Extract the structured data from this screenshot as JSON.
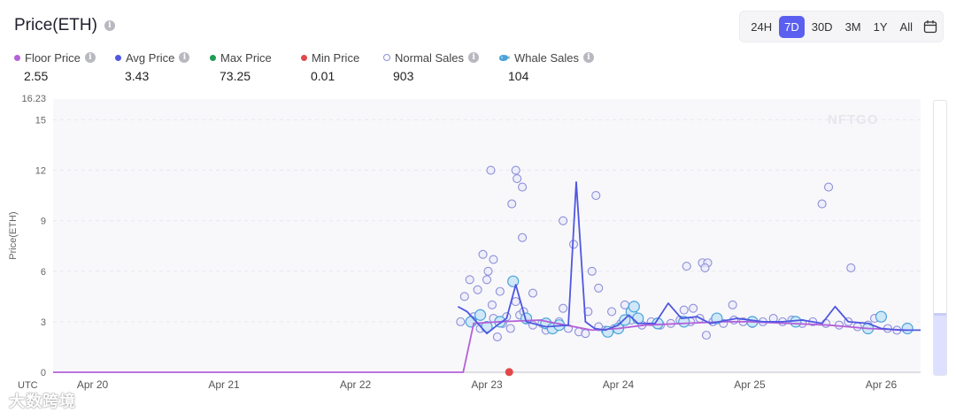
{
  "header": {
    "title": "Price(ETH)"
  },
  "ranges": {
    "items": [
      "24H",
      "7D",
      "30D",
      "3M",
      "1Y",
      "All"
    ],
    "active": "7D"
  },
  "legend": [
    {
      "label": "Floor Price",
      "value": "2.55",
      "color": "#b460d8",
      "kind": "dot",
      "info": true
    },
    {
      "label": "Avg Price",
      "value": "3.43",
      "color": "#4f57e0",
      "kind": "dot",
      "info": true
    },
    {
      "label": "Max Price",
      "value": "73.25",
      "color": "#1e9b54",
      "kind": "dot",
      "info": false
    },
    {
      "label": "Min Price",
      "value": "0.01",
      "color": "#e0484a",
      "kind": "dot",
      "info": false
    },
    {
      "label": "Normal Sales",
      "value": "903",
      "color": "#8c8fd8",
      "kind": "ring",
      "info": true
    },
    {
      "label": "Whale Sales",
      "value": "104",
      "color": "#4aa3d8",
      "kind": "whale-icon",
      "info": true
    }
  ],
  "watermark": "大数跨境",
  "brand": "NFTGO",
  "chart_data": {
    "type": "scatter+line",
    "ylabel": "Price(ETH)",
    "y_top_label": "16.23",
    "ylim": [
      0,
      16.23
    ],
    "y_ticks": [
      0,
      3,
      6,
      9,
      12,
      15
    ],
    "xlim": [
      19.7,
      26.3
    ],
    "x_ticks": [
      {
        "x": 20,
        "label": "Apr 20"
      },
      {
        "x": 21,
        "label": "Apr 21"
      },
      {
        "x": 22,
        "label": "Apr 22"
      },
      {
        "x": 23,
        "label": "Apr 23"
      },
      {
        "x": 24,
        "label": "Apr 24"
      },
      {
        "x": 25,
        "label": "Apr 25"
      },
      {
        "x": 26,
        "label": "Apr 26"
      }
    ],
    "x_prefix": "UTC",
    "floor_price": {
      "name": "Floor Price",
      "color": "#b460d8",
      "points": [
        [
          19.7,
          0
        ],
        [
          22.82,
          0
        ],
        [
          22.9,
          2.9
        ],
        [
          23.1,
          3.0
        ],
        [
          23.4,
          3.1
        ],
        [
          23.6,
          2.8
        ],
        [
          23.8,
          2.5
        ],
        [
          24.0,
          2.6
        ],
        [
          24.2,
          2.8
        ],
        [
          24.5,
          2.9
        ],
        [
          24.8,
          3.0
        ],
        [
          25.0,
          3.0
        ],
        [
          25.3,
          2.9
        ],
        [
          25.6,
          2.8
        ],
        [
          25.9,
          2.6
        ],
        [
          26.2,
          2.5
        ]
      ]
    },
    "avg_price": {
      "name": "Avg Price",
      "color": "#4f57e0",
      "points": [
        [
          22.78,
          3.9
        ],
        [
          22.85,
          3.6
        ],
        [
          22.92,
          3.0
        ],
        [
          23.0,
          2.3
        ],
        [
          23.08,
          2.8
        ],
        [
          23.15,
          3.2
        ],
        [
          23.22,
          5.2
        ],
        [
          23.3,
          3.0
        ],
        [
          23.45,
          2.7
        ],
        [
          23.62,
          2.8
        ],
        [
          23.68,
          11.3
        ],
        [
          23.75,
          3.0
        ],
        [
          23.82,
          2.6
        ],
        [
          23.9,
          2.5
        ],
        [
          24.0,
          2.8
        ],
        [
          24.08,
          3.4
        ],
        [
          24.15,
          2.9
        ],
        [
          24.28,
          2.9
        ],
        [
          24.38,
          4.1
        ],
        [
          24.48,
          3.2
        ],
        [
          24.6,
          3.3
        ],
        [
          24.7,
          2.9
        ],
        [
          24.9,
          3.2
        ],
        [
          25.1,
          3.0
        ],
        [
          25.25,
          3.0
        ],
        [
          25.4,
          3.1
        ],
        [
          25.55,
          2.9
        ],
        [
          25.65,
          3.9
        ],
        [
          25.75,
          3.0
        ],
        [
          25.9,
          2.9
        ],
        [
          26.0,
          2.6
        ],
        [
          26.15,
          2.5
        ],
        [
          26.3,
          2.5
        ]
      ]
    },
    "min_price": {
      "name": "Min Price",
      "color": "#e0484a",
      "points": [
        [
          23.17,
          0.01
        ]
      ]
    },
    "normal_sales": {
      "name": "Normal Sales",
      "color": "#8c8fd8",
      "points": [
        [
          23.03,
          12.0
        ],
        [
          23.22,
          12.0
        ],
        [
          23.23,
          11.5
        ],
        [
          23.27,
          11.0
        ],
        [
          23.19,
          10.0
        ],
        [
          23.58,
          9.0
        ],
        [
          23.66,
          7.6
        ],
        [
          23.83,
          10.5
        ],
        [
          22.97,
          7.0
        ],
        [
          23.05,
          6.7
        ],
        [
          23.01,
          6.0
        ],
        [
          23.27,
          8.0
        ],
        [
          22.87,
          5.5
        ],
        [
          22.93,
          4.9
        ],
        [
          23.0,
          5.5
        ],
        [
          23.1,
          4.8
        ],
        [
          22.83,
          4.5
        ],
        [
          23.04,
          4.0
        ],
        [
          23.22,
          4.2
        ],
        [
          23.35,
          4.7
        ],
        [
          23.58,
          3.8
        ],
        [
          23.8,
          6.0
        ],
        [
          23.85,
          5.0
        ],
        [
          23.77,
          3.6
        ],
        [
          23.95,
          3.6
        ],
        [
          24.05,
          4.0
        ],
        [
          24.52,
          6.3
        ],
        [
          24.64,
          6.5
        ],
        [
          24.68,
          6.5
        ],
        [
          24.66,
          6.2
        ],
        [
          24.5,
          3.7
        ],
        [
          24.57,
          3.8
        ],
        [
          24.87,
          4.0
        ],
        [
          24.67,
          2.2
        ],
        [
          25.55,
          10.0
        ],
        [
          25.6,
          11.0
        ],
        [
          25.77,
          6.2
        ],
        [
          25.95,
          3.2
        ],
        [
          22.8,
          3.0
        ],
        [
          22.9,
          3.3
        ],
        [
          22.95,
          2.6
        ],
        [
          23.05,
          3.2
        ],
        [
          23.12,
          2.9
        ],
        [
          23.18,
          2.6
        ],
        [
          23.25,
          3.4
        ],
        [
          23.3,
          3.1
        ],
        [
          23.35,
          2.8
        ],
        [
          23.42,
          2.9
        ],
        [
          23.48,
          2.7
        ],
        [
          23.55,
          3.0
        ],
        [
          23.62,
          2.6
        ],
        [
          23.7,
          2.4
        ],
        [
          23.75,
          2.3
        ],
        [
          23.85,
          2.7
        ],
        [
          23.9,
          2.5
        ],
        [
          23.97,
          2.6
        ],
        [
          24.02,
          2.9
        ],
        [
          24.1,
          3.1
        ],
        [
          24.18,
          2.8
        ],
        [
          24.25,
          3.0
        ],
        [
          24.32,
          2.8
        ],
        [
          24.4,
          2.9
        ],
        [
          24.47,
          3.1
        ],
        [
          24.55,
          3.0
        ],
        [
          24.62,
          3.2
        ],
        [
          24.72,
          3.0
        ],
        [
          24.8,
          2.9
        ],
        [
          24.88,
          3.1
        ],
        [
          24.95,
          3.0
        ],
        [
          25.02,
          2.9
        ],
        [
          25.1,
          3.0
        ],
        [
          25.18,
          3.2
        ],
        [
          25.25,
          3.0
        ],
        [
          25.32,
          3.1
        ],
        [
          25.4,
          2.9
        ],
        [
          25.48,
          3.0
        ],
        [
          25.58,
          2.9
        ],
        [
          25.68,
          2.8
        ],
        [
          25.75,
          3.0
        ],
        [
          25.82,
          2.7
        ],
        [
          25.9,
          2.8
        ],
        [
          26.05,
          2.6
        ],
        [
          26.12,
          2.5
        ],
        [
          26.2,
          2.6
        ],
        [
          23.08,
          2.1
        ],
        [
          23.15,
          3.3
        ],
        [
          23.28,
          3.6
        ],
        [
          23.45,
          2.5
        ]
      ]
    },
    "whale_sales": {
      "name": "Whale Sales",
      "color": "#4aa3d8",
      "points": [
        [
          23.2,
          5.4
        ],
        [
          26.0,
          3.3
        ],
        [
          22.88,
          3.0
        ],
        [
          22.95,
          3.4
        ],
        [
          23.0,
          2.7
        ],
        [
          23.1,
          3.0
        ],
        [
          23.3,
          3.2
        ],
        [
          23.45,
          2.9
        ],
        [
          23.5,
          2.6
        ],
        [
          23.55,
          2.8
        ],
        [
          23.92,
          2.4
        ],
        [
          24.0,
          2.6
        ],
        [
          24.05,
          3.1
        ],
        [
          24.1,
          3.6
        ],
        [
          24.12,
          3.9
        ],
        [
          24.15,
          3.2
        ],
        [
          24.3,
          2.9
        ],
        [
          24.5,
          3.0
        ],
        [
          24.75,
          3.2
        ],
        [
          25.02,
          3.0
        ],
        [
          25.35,
          3.0
        ],
        [
          25.9,
          2.6
        ],
        [
          26.2,
          2.6
        ]
      ]
    }
  }
}
